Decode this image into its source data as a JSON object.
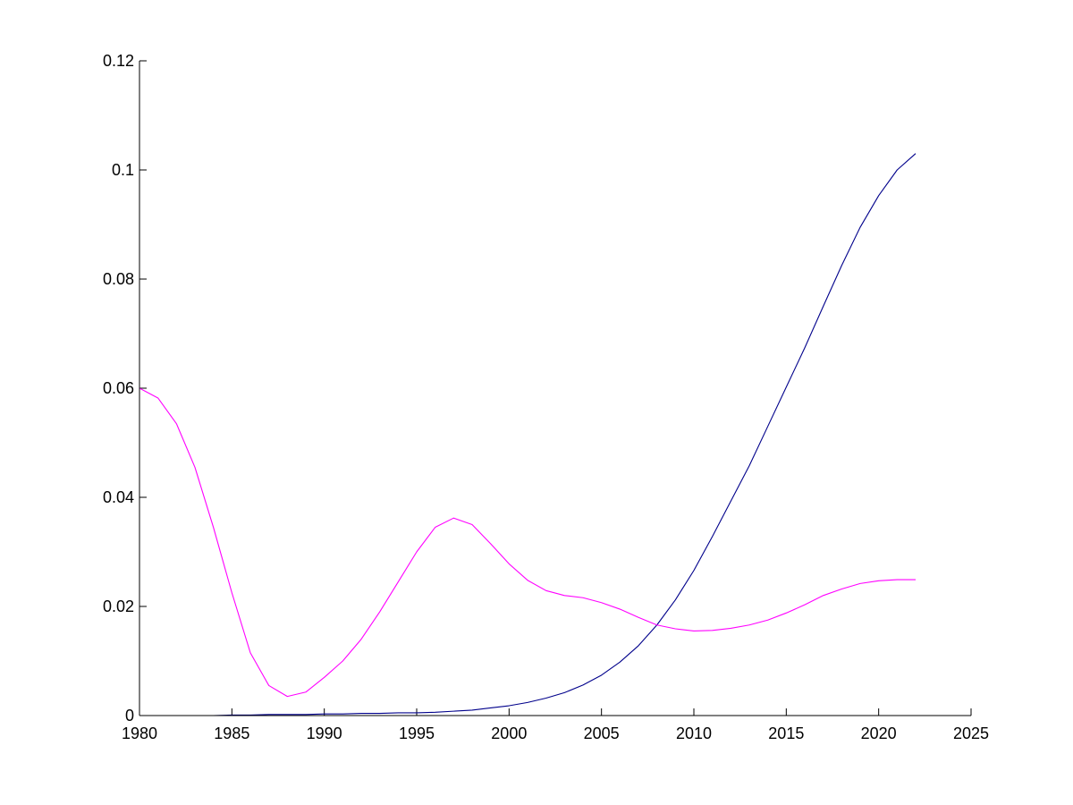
{
  "chart_data": {
    "type": "line",
    "title": "",
    "xlabel": "",
    "ylabel": "",
    "xlim": [
      1980,
      2025
    ],
    "ylim": [
      0,
      0.12
    ],
    "x_ticks": [
      1980,
      1985,
      1990,
      1995,
      2000,
      2005,
      2010,
      2015,
      2020,
      2025
    ],
    "y_ticks": [
      0,
      0.02,
      0.04,
      0.06,
      0.08,
      0.1,
      0.12
    ],
    "x_tick_labels": [
      "1980",
      "1985",
      "1990",
      "1995",
      "2000",
      "2005",
      "2010",
      "2015",
      "2020",
      "2025"
    ],
    "y_tick_labels": [
      "0",
      "0.02",
      "0.04",
      "0.06",
      "0.08",
      "0.1",
      "0.12"
    ],
    "grid": false,
    "legend": "none",
    "x": [
      1980,
      1981,
      1982,
      1983,
      1984,
      1985,
      1986,
      1987,
      1988,
      1989,
      1990,
      1991,
      1992,
      1993,
      1994,
      1995,
      1996,
      1997,
      1998,
      1999,
      2000,
      2001,
      2002,
      2003,
      2004,
      2005,
      2006,
      2007,
      2008,
      2009,
      2010,
      2011,
      2012,
      2013,
      2014,
      2015,
      2016,
      2017,
      2018,
      2019,
      2020,
      2021,
      2022
    ],
    "series": [
      {
        "color": "#00008b",
        "values": [
          0.0,
          0.0,
          0.0,
          0.0,
          0.0,
          0.0001,
          0.0001,
          0.0002,
          0.0002,
          0.0002,
          0.0003,
          0.0003,
          0.0004,
          0.0004,
          0.0005,
          0.0005,
          0.0006,
          0.0008,
          0.001,
          0.0014,
          0.0018,
          0.0024,
          0.0032,
          0.0042,
          0.0056,
          0.0074,
          0.0098,
          0.0128,
          0.0166,
          0.0212,
          0.0266,
          0.0328,
          0.0393,
          0.0458,
          0.053,
          0.0602,
          0.0674,
          0.075,
          0.0825,
          0.0895,
          0.0953,
          0.1,
          0.103
        ]
      },
      {
        "color": "#ff00ff",
        "values": [
          0.06,
          0.0582,
          0.0535,
          0.0455,
          0.0345,
          0.0225,
          0.0115,
          0.0055,
          0.0035,
          0.0043,
          0.007,
          0.01,
          0.014,
          0.019,
          0.0245,
          0.03,
          0.0345,
          0.0362,
          0.035,
          0.0315,
          0.0278,
          0.0248,
          0.0229,
          0.022,
          0.0216,
          0.0207,
          0.0195,
          0.018,
          0.0166,
          0.0159,
          0.0155,
          0.0156,
          0.016,
          0.0166,
          0.0175,
          0.0188,
          0.0203,
          0.022,
          0.0232,
          0.0242,
          0.0247,
          0.0249,
          0.0249
        ]
      }
    ]
  }
}
